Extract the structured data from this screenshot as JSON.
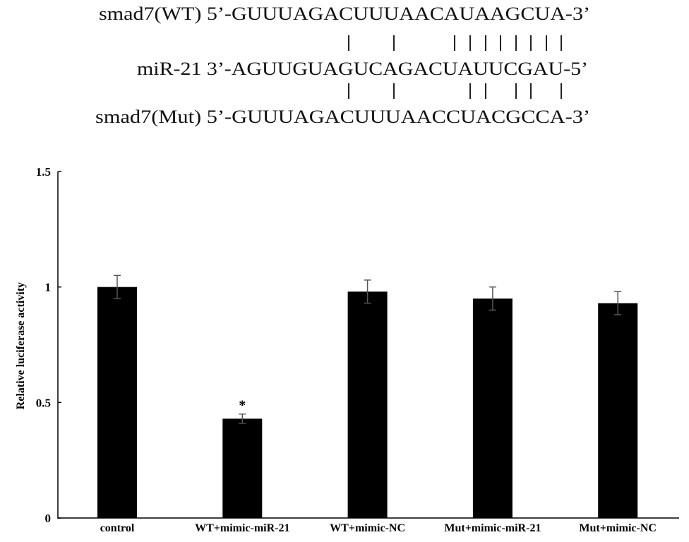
{
  "alignment": {
    "lines": [
      "smad7(WT) 5’-GUUUAGACUUUAACAUAAGCUA-3’",
      "miR-21 3’-AGUUGUAGUCAGACUAUUCGAU-5’",
      "smad7(Mut) 5’-GUUUAGACUUUAACCUACGCCA-3’"
    ]
  },
  "chart_data": {
    "type": "bar",
    "y_label": "Relative luciferase activity",
    "categories": [
      "control",
      "WT+mimic-miR-21",
      "WT+mimic-NC",
      "Mut+mimic-miR-21",
      "Mut+mimic-NC"
    ],
    "series": [
      {
        "color": "#000000",
        "error_color": "#555555",
        "values": [
          1.0,
          0.43,
          0.98,
          0.95,
          0.93
        ],
        "errors": [
          0.05,
          0.02,
          0.05,
          0.05,
          0.05
        ]
      }
    ],
    "annotations": [
      {
        "text": "*",
        "category": "WT+mimic-miR-21"
      }
    ],
    "ylim": [
      0,
      1.5
    ],
    "yticks": [
      0,
      0.5,
      1,
      1.5
    ],
    "grid": false
  }
}
